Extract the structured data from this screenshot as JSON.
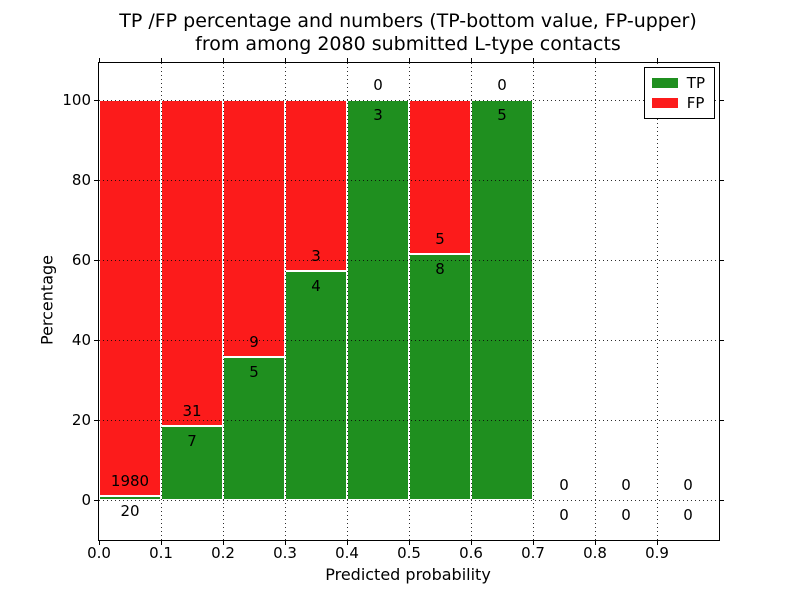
{
  "figure": {
    "title_line1": "TP /FP percentage and numbers (TP-bottom value, FP-upper)",
    "title_line2": "from among 2080 submitted L-type contacts"
  },
  "axes": {
    "xlabel": "Predicted probability",
    "ylabel": "Percentage"
  },
  "legend": {
    "items": [
      {
        "label": "TP",
        "color": "#1f8f1f"
      },
      {
        "label": "FP",
        "color": "#fc1b1b"
      }
    ],
    "position": "upper right"
  },
  "colors": {
    "background": "#ffffff",
    "axis": "#000000",
    "grid": "#1a1a1a",
    "bar_edge": "#ffffff",
    "tp": "#1f8f1f",
    "fp": "#fc1b1b"
  },
  "chart_data": {
    "type": "bar",
    "stacked": true,
    "percent_normalized": true,
    "title": "TP /FP percentage and numbers (TP-bottom value, FP-upper)\nfrom among 2080 submitted L-type contacts",
    "xlabel": "Predicted probability",
    "ylabel": "Percentage",
    "total_submitted": 2080,
    "categories": [
      "0.0-0.1",
      "0.1-0.2",
      "0.2-0.3",
      "0.3-0.4",
      "0.4-0.5",
      "0.5-0.6",
      "0.6-0.7",
      "0.7-0.8",
      "0.8-0.9",
      "0.9-1.0"
    ],
    "bin_edges": [
      0.0,
      0.1,
      0.2,
      0.3,
      0.4,
      0.5,
      0.6,
      0.7,
      0.8,
      0.9,
      1.0
    ],
    "series": [
      {
        "name": "TP",
        "color": "#1f8f1f",
        "counts": [
          20,
          7,
          5,
          4,
          3,
          8,
          5,
          0,
          0,
          0
        ],
        "percent": [
          1.0,
          18.4,
          35.7,
          57.1,
          100.0,
          61.5,
          100.0,
          null,
          null,
          null
        ]
      },
      {
        "name": "FP",
        "color": "#fc1b1b",
        "counts": [
          1980,
          31,
          9,
          3,
          0,
          5,
          0,
          0,
          0,
          0
        ],
        "percent": [
          99.0,
          81.6,
          64.3,
          42.9,
          0.0,
          38.5,
          0.0,
          null,
          null,
          null
        ]
      }
    ],
    "annotation_rule": "FP count above TP/FP boundary, TP count below boundary",
    "xlim": [
      0,
      1
    ],
    "ylim": [
      -10,
      110
    ],
    "xticks": [
      0.0,
      0.1,
      0.2,
      0.3,
      0.4,
      0.5,
      0.6,
      0.7,
      0.8,
      0.9
    ],
    "xtick_labels": [
      "0.0",
      "0.1",
      "0.2",
      "0.3",
      "0.4",
      "0.5",
      "0.6",
      "0.7",
      "0.8",
      "0.9"
    ],
    "yticks": [
      0,
      20,
      40,
      60,
      80,
      100
    ],
    "ytick_labels": [
      "0",
      "20",
      "40",
      "60",
      "80",
      "100"
    ],
    "grid": true,
    "grid_style": "dotted",
    "legend_position": "upper right"
  }
}
